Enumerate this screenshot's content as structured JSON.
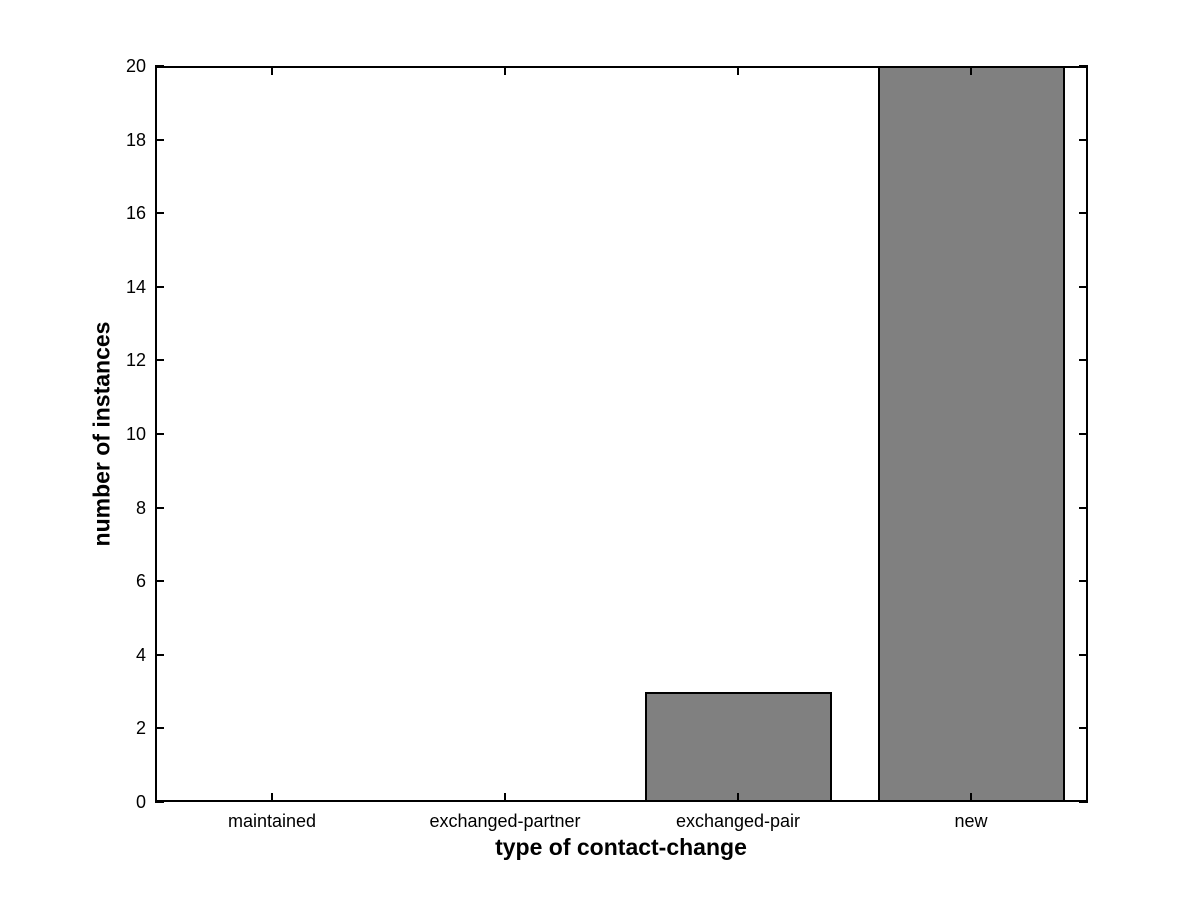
{
  "figure": {
    "background_color": "#ffffff",
    "axis_color": "#000000",
    "bar_fill_color": "#808080",
    "bar_edge_color": "#000000"
  },
  "chart_data": {
    "type": "bar",
    "title": "",
    "xlabel": "type of contact-change",
    "ylabel": "number of instances",
    "categories": [
      "maintained",
      "exchanged-partner",
      "exchanged-pair",
      "new"
    ],
    "values": [
      0,
      0,
      3,
      20
    ],
    "x_positions": [
      1,
      2,
      3,
      4
    ],
    "xlim": [
      0.5,
      4.5
    ],
    "ylim": [
      0,
      20
    ],
    "yticks": [
      0,
      2,
      4,
      6,
      8,
      10,
      12,
      14,
      16,
      18,
      20
    ],
    "bar_width_units": 0.8,
    "grid": false,
    "legend": null,
    "box": "on",
    "tick_direction": "in"
  }
}
